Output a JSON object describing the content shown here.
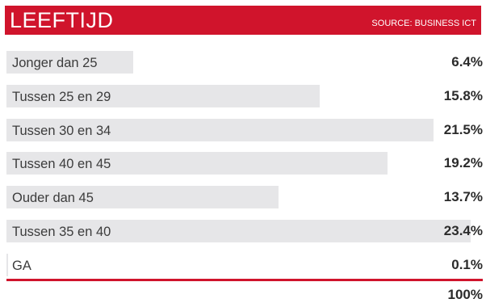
{
  "header": {
    "title": "LEEFTIJD",
    "source": "SOURCE: BUSINESS ICT"
  },
  "colors": {
    "accent": "#d0142c",
    "bar": "#e6e6e8",
    "text": "#2b2b2b"
  },
  "chart_data": {
    "type": "bar",
    "orientation": "horizontal",
    "title": "LEEFTIJD",
    "subtitle": "SOURCE: BUSINESS ICT",
    "categories": [
      "Jonger dan 25",
      "Tussen 25 en 29",
      "Tussen 30 en 34",
      "Tussen 40 en 45",
      "Ouder dan 45",
      "Tussen 35 en 40",
      "GA"
    ],
    "values": [
      6.4,
      15.8,
      21.5,
      19.2,
      13.7,
      23.4,
      0.1
    ],
    "value_labels": [
      "6.4%",
      "15.8%",
      "21.5%",
      "19.2%",
      "13.7%",
      "23.4%",
      "0.1%"
    ],
    "unit": "%",
    "xlim": [
      0,
      24
    ],
    "total_label": "100%"
  }
}
